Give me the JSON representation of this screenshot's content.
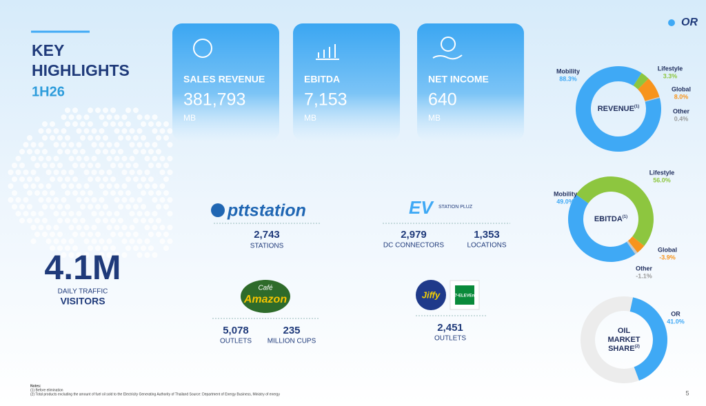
{
  "header": {
    "title_line1": "KEY",
    "title_line2": "HIGHLIGHTS",
    "period": "1H26",
    "logo": "OR",
    "page_number": "5"
  },
  "kpis": [
    {
      "label": "SALES REVENUE",
      "value": "381,793",
      "unit": "MB"
    },
    {
      "label": "EBITDA",
      "value": "7,153",
      "unit": "MB"
    },
    {
      "label": "NET INCOME",
      "value": "640",
      "unit": "MB"
    }
  ],
  "traffic": {
    "value": "4.1M",
    "line1": "DAILY TRAFFIC",
    "line2": "VISITORS"
  },
  "networks": [
    {
      "brand": "pttstation",
      "stats": [
        {
          "value": "2,743",
          "label": "STATIONS"
        }
      ]
    },
    {
      "brand": "EV",
      "brand_sub": "STATION PLUZ",
      "stats": [
        {
          "value": "2,979",
          "label": "DC CONNECTORS"
        },
        {
          "value": "1,353",
          "label": "LOCATIONS"
        }
      ]
    },
    {
      "brand": "Amazon",
      "brand_sub": "Café",
      "stats": [
        {
          "value": "5,078",
          "label": "OUTLETS"
        },
        {
          "value": "235",
          "label": "MILLION CUPS"
        }
      ]
    },
    {
      "brand": "Jiffy",
      "brand_sub": "7-ELEVEn",
      "stats": [
        {
          "value": "2,451",
          "label": "OUTLETS"
        }
      ]
    }
  ],
  "notes": [
    "Notes:",
    "(1)  Before elimination",
    "(2)  Total products excluding the amount of fuel oil sold to the Electricity Generating Authority of Thailand Source: Department of Energy Business, Ministry of energy"
  ],
  "chart_data": [
    {
      "type": "donut",
      "title_lines": [
        "REVENUE"
      ],
      "title_note": "(1)",
      "categories": [
        "Mobility",
        "Lifestyle",
        "Global",
        "Other"
      ],
      "values": [
        88.3,
        3.3,
        8.0,
        0.4
      ],
      "value_labels": [
        "88.3%",
        "3.3%",
        "8.0%",
        "0.4%"
      ],
      "colors": [
        "#3fa9f5",
        "#8dc63f",
        "#f7941d",
        "#c8c8c8"
      ]
    },
    {
      "type": "donut",
      "title_lines": [
        "EBITDA"
      ],
      "title_note": "(1)",
      "categories": [
        "Mobility",
        "Lifestyle",
        "Global",
        "Other"
      ],
      "values": [
        49.0,
        56.0,
        -3.9,
        -1.1
      ],
      "value_labels": [
        "49.0%",
        "56.0%",
        "-3.9%",
        "-1.1%"
      ],
      "colors": [
        "#3fa9f5",
        "#8dc63f",
        "#f7941d",
        "#c8c8c8"
      ]
    },
    {
      "type": "share",
      "title_lines": [
        "OIL",
        "MARKET",
        "SHARE"
      ],
      "title_note": "(2)",
      "categories": [
        "OR"
      ],
      "values": [
        41.0
      ],
      "value_labels": [
        "41.0%"
      ],
      "colors": [
        "#3fa9f5"
      ]
    }
  ]
}
